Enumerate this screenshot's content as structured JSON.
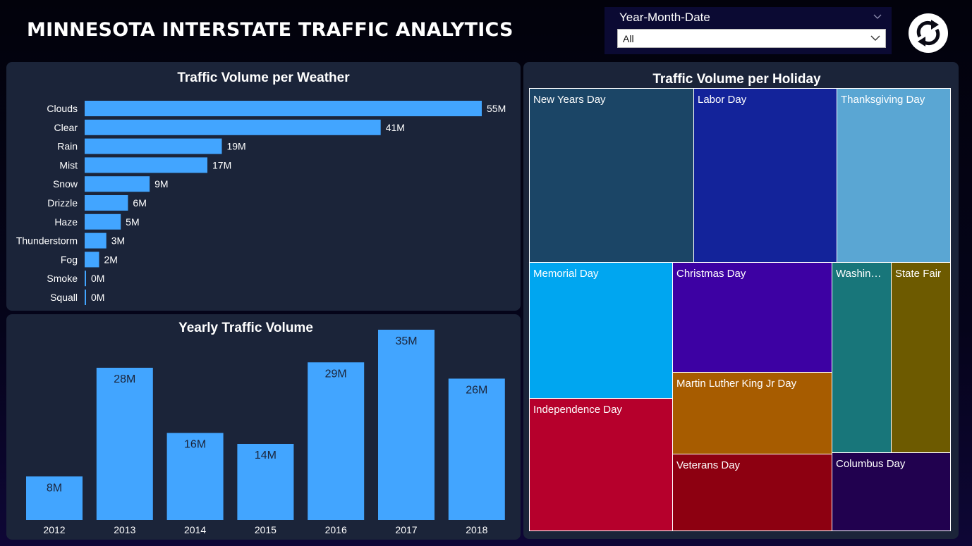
{
  "header": {
    "title": "MINNESOTA INTERSTATE TRAFFIC ANALYTICS"
  },
  "slicer": {
    "label": "Year-Month-Date",
    "selected": "All"
  },
  "refresh_icon": "refresh-icon",
  "chart_data": [
    {
      "type": "bar",
      "orientation": "horizontal",
      "title": "Traffic Volume per Weather",
      "categories": [
        "Clouds",
        "Clear",
        "Rain",
        "Mist",
        "Snow",
        "Drizzle",
        "Haze",
        "Thunderstorm",
        "Fog",
        "Smoke",
        "Squall"
      ],
      "values": [
        55,
        41,
        19,
        17,
        9,
        6,
        5,
        3,
        2,
        0.1,
        0.1
      ],
      "data_labels": [
        "55M",
        "41M",
        "19M",
        "17M",
        "9M",
        "6M",
        "5M",
        "3M",
        "2M",
        "0M",
        "0M"
      ],
      "unit": "M",
      "color": "#42a5ff"
    },
    {
      "type": "bar",
      "orientation": "vertical",
      "title": "Yearly Traffic Volume",
      "categories": [
        "2012",
        "2013",
        "2014",
        "2015",
        "2016",
        "2017",
        "2018"
      ],
      "values": [
        8,
        28,
        16,
        14,
        29,
        35,
        26
      ],
      "data_labels": [
        "8M",
        "28M",
        "16M",
        "14M",
        "29M",
        "35M",
        "26M"
      ],
      "unit": "M",
      "color": "#42a5ff"
    },
    {
      "type": "treemap",
      "title": "Traffic Volume per Holiday",
      "items": [
        {
          "label": "New Years Day",
          "color": "#1b4566"
        },
        {
          "label": "Labor Day",
          "color": "#13239a"
        },
        {
          "label": "Thanksgiving Day",
          "color": "#5aa6d3"
        },
        {
          "label": "Memorial Day",
          "color": "#00a6f0"
        },
        {
          "label": "Christmas Day",
          "color": "#3d01a3"
        },
        {
          "label": "Washin…",
          "color": "#18767a"
        },
        {
          "label": "State Fair",
          "color": "#6d5a00"
        },
        {
          "label": "Martin Luther King Jr Day",
          "color": "#a75c00"
        },
        {
          "label": "Independence Day",
          "color": "#b6002c"
        },
        {
          "label": "Veterans Day",
          "color": "#8d0011"
        },
        {
          "label": "Columbus Day",
          "color": "#21014f"
        }
      ]
    }
  ]
}
